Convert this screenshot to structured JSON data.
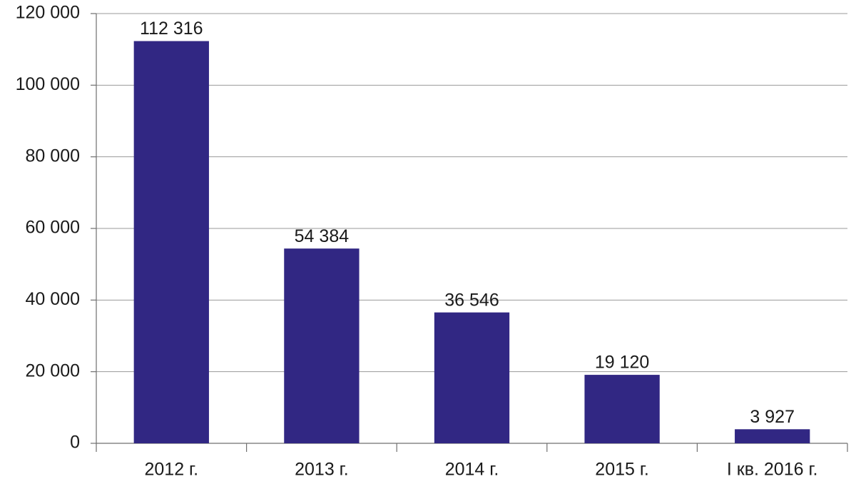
{
  "chart_data": {
    "type": "bar",
    "categories": [
      "2012 г.",
      "2013 г.",
      "2014 г.",
      "2015 г.",
      "I кв. 2016 г."
    ],
    "values": [
      112316,
      54384,
      36546,
      19120,
      3927
    ],
    "value_labels": [
      "112 316",
      "54 384",
      "36 546",
      "19 120",
      "3 927"
    ],
    "color": "#312783",
    "ylim": [
      0,
      120000
    ],
    "yticks": [
      0,
      {
        "value": 20000,
        "label": "20 000"
      },
      {
        "value": 40000,
        "label": "40 000"
      },
      {
        "value": 60000,
        "label": "60 000"
      },
      {
        "value": 80000,
        "label": "80 000"
      },
      {
        "value": 100000,
        "label": "100 000"
      },
      {
        "value": 120000,
        "label": "120 000"
      }
    ],
    "grid": true
  }
}
